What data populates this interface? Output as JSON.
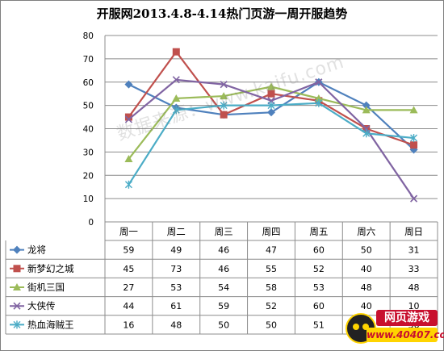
{
  "chart_data": {
    "type": "line",
    "title": "开服网2013.4.8-4.14热门页游一周开服趋势",
    "categories": [
      "周一",
      "周二",
      "周三",
      "周四",
      "周五",
      "周六",
      "周日"
    ],
    "ylim": [
      0,
      80
    ],
    "yticks": [
      0,
      10,
      20,
      30,
      40,
      50,
      60,
      70,
      80
    ],
    "grid": true,
    "legend": "table-below",
    "series": [
      {
        "name": "龙将",
        "values": [
          59,
          49,
          46,
          47,
          60,
          50,
          31
        ],
        "color": "#4f81bd",
        "marker": "diamond"
      },
      {
        "name": "新梦幻之城",
        "values": [
          45,
          73,
          46,
          55,
          52,
          40,
          33
        ],
        "color": "#c0504d",
        "marker": "square"
      },
      {
        "name": "街机三国",
        "values": [
          27,
          53,
          54,
          58,
          53,
          48,
          48
        ],
        "color": "#9bbb59",
        "marker": "triangle"
      },
      {
        "name": "大侠传",
        "values": [
          44,
          61,
          59,
          52,
          60,
          40,
          10
        ],
        "color": "#8064a2",
        "marker": "x"
      },
      {
        "name": "热血海贼王",
        "values": [
          16,
          48,
          50,
          50,
          51,
          38,
          36
        ],
        "color": "#4bacc6",
        "marker": "star"
      }
    ]
  },
  "watermark": "数据来源：www.kaifu.com",
  "logo": {
    "cn": "网页游戏",
    "url": "www.40407.com"
  }
}
